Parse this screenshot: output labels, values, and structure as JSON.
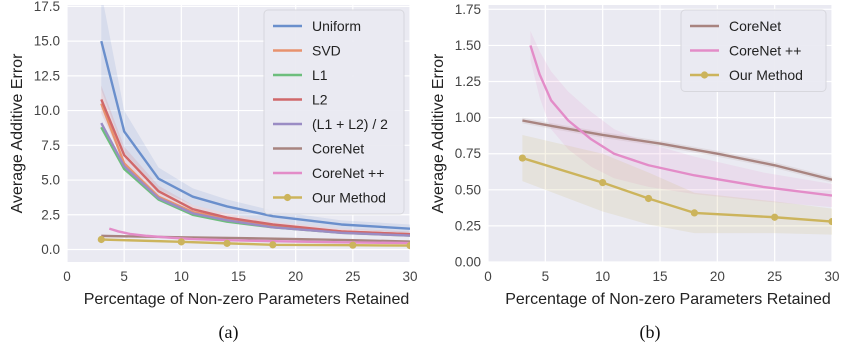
{
  "chart_data": [
    {
      "type": "line",
      "panel_label": "(a)",
      "xlabel": "Percentage of Non-zero Parameters Retained",
      "ylabel": "Average Additive Error",
      "xlim": [
        0,
        30
      ],
      "ylim": [
        -0.9,
        17.6
      ],
      "xticks": [
        0,
        5,
        10,
        15,
        20,
        25,
        30
      ],
      "yticks": [
        0.0,
        2.5,
        5.0,
        7.5,
        10.0,
        12.5,
        15.0,
        17.5
      ],
      "ytick_decimals": 1,
      "grid": true,
      "legend_position": "top-right",
      "series": [
        {
          "name": "Uniform",
          "color": "#6a8fcc",
          "x": [
            3,
            5,
            8,
            11,
            14,
            18,
            24,
            30
          ],
          "y": [
            15.0,
            8.5,
            5.1,
            3.8,
            3.1,
            2.4,
            1.8,
            1.5
          ],
          "band": [
            3.5,
            1.5,
            0.8,
            0.6,
            0.5,
            0.4,
            0.3,
            0.3
          ],
          "marker": false
        },
        {
          "name": "SVD",
          "color": "#e8926e",
          "x": [
            3,
            5,
            8,
            11,
            14,
            18,
            24,
            30
          ],
          "y": [
            10.5,
            6.2,
            3.8,
            2.7,
            2.2,
            1.7,
            1.3,
            1.1
          ],
          "band": [
            0,
            0,
            0,
            0,
            0,
            0,
            0,
            0
          ],
          "marker": false
        },
        {
          "name": "L1",
          "color": "#6dbe7d",
          "x": [
            3,
            5,
            8,
            11,
            14,
            18,
            24,
            30
          ],
          "y": [
            8.8,
            5.8,
            3.6,
            2.5,
            2.0,
            1.6,
            1.2,
            1.0
          ],
          "band": [
            0,
            0,
            0,
            0,
            0,
            0,
            0,
            0
          ],
          "marker": false
        },
        {
          "name": "L2",
          "color": "#d0686a",
          "x": [
            3,
            5,
            8,
            11,
            14,
            18,
            24,
            30
          ],
          "y": [
            10.8,
            6.8,
            4.2,
            2.9,
            2.3,
            1.8,
            1.3,
            1.1
          ],
          "band": [
            1.0,
            0.6,
            0.4,
            0.3,
            0.3,
            0.2,
            0.2,
            0.2
          ],
          "marker": false
        },
        {
          "name": "(L1 + L2) / 2",
          "color": "#9a8cc4",
          "x": [
            3,
            5,
            8,
            11,
            14,
            18,
            24,
            30
          ],
          "y": [
            9.1,
            6.0,
            3.7,
            2.6,
            2.1,
            1.6,
            1.2,
            1.0
          ],
          "band": [
            0,
            0,
            0,
            0,
            0,
            0,
            0,
            0
          ],
          "marker": false
        },
        {
          "name": "CoreNet",
          "color": "#a88480",
          "x": [
            3,
            5,
            10,
            15,
            20,
            25,
            30
          ],
          "y": [
            0.98,
            0.95,
            0.88,
            0.82,
            0.75,
            0.67,
            0.57
          ],
          "band": [
            0,
            0,
            0,
            0,
            0,
            0,
            0
          ],
          "marker": false
        },
        {
          "name": "CoreNet ++",
          "color": "#e38cc8",
          "x": [
            3.7,
            4.5,
            5.5,
            7,
            9,
            11,
            14,
            18,
            24,
            30
          ],
          "y": [
            1.5,
            1.3,
            1.12,
            0.98,
            0.85,
            0.75,
            0.67,
            0.6,
            0.52,
            0.46
          ],
          "band": [
            0,
            0,
            0,
            0,
            0,
            0,
            0,
            0,
            0,
            0
          ],
          "marker": false
        },
        {
          "name": "Our Method",
          "color": "#ccb45c",
          "x": [
            3,
            10,
            14,
            18,
            25,
            30
          ],
          "y": [
            0.72,
            0.55,
            0.44,
            0.34,
            0.31,
            0.28
          ],
          "band": [
            0,
            0,
            0,
            0,
            0,
            0
          ],
          "marker": true
        }
      ]
    },
    {
      "type": "line",
      "panel_label": "(b)",
      "xlabel": "Percentage of Non-zero Parameters Retained",
      "ylabel": "Average Additive Error",
      "xlim": [
        0,
        30
      ],
      "ylim": [
        0,
        1.78
      ],
      "xticks": [
        0,
        5,
        10,
        15,
        20,
        25,
        30
      ],
      "yticks": [
        0.0,
        0.25,
        0.5,
        0.75,
        1.0,
        1.25,
        1.5,
        1.75
      ],
      "ytick_decimals": 2,
      "grid": true,
      "legend_position": "top-right",
      "series": [
        {
          "name": "CoreNet",
          "color": "#a88480",
          "x": [
            3,
            5,
            10,
            15,
            20,
            25,
            30
          ],
          "y": [
            0.98,
            0.95,
            0.88,
            0.82,
            0.75,
            0.67,
            0.57
          ],
          "band": [
            0.02,
            0.02,
            0.02,
            0.02,
            0.02,
            0.02,
            0.02
          ],
          "marker": false
        },
        {
          "name": "CoreNet ++",
          "color": "#e38cc8",
          "x": [
            3.7,
            4.5,
            5.5,
            7,
            9,
            11,
            14,
            18,
            24,
            30
          ],
          "y": [
            1.5,
            1.3,
            1.12,
            0.98,
            0.85,
            0.75,
            0.67,
            0.6,
            0.52,
            0.46
          ],
          "band": [
            0.1,
            0.16,
            0.2,
            0.2,
            0.19,
            0.17,
            0.15,
            0.13,
            0.1,
            0.08
          ],
          "marker": false
        },
        {
          "name": "Our Method",
          "color": "#ccb45c",
          "x": [
            3,
            10,
            14,
            18,
            25,
            30
          ],
          "y": [
            0.72,
            0.55,
            0.44,
            0.34,
            0.31,
            0.28
          ],
          "band": [
            0.16,
            0.2,
            0.18,
            0.14,
            0.11,
            0.09
          ],
          "marker": true
        }
      ]
    }
  ]
}
